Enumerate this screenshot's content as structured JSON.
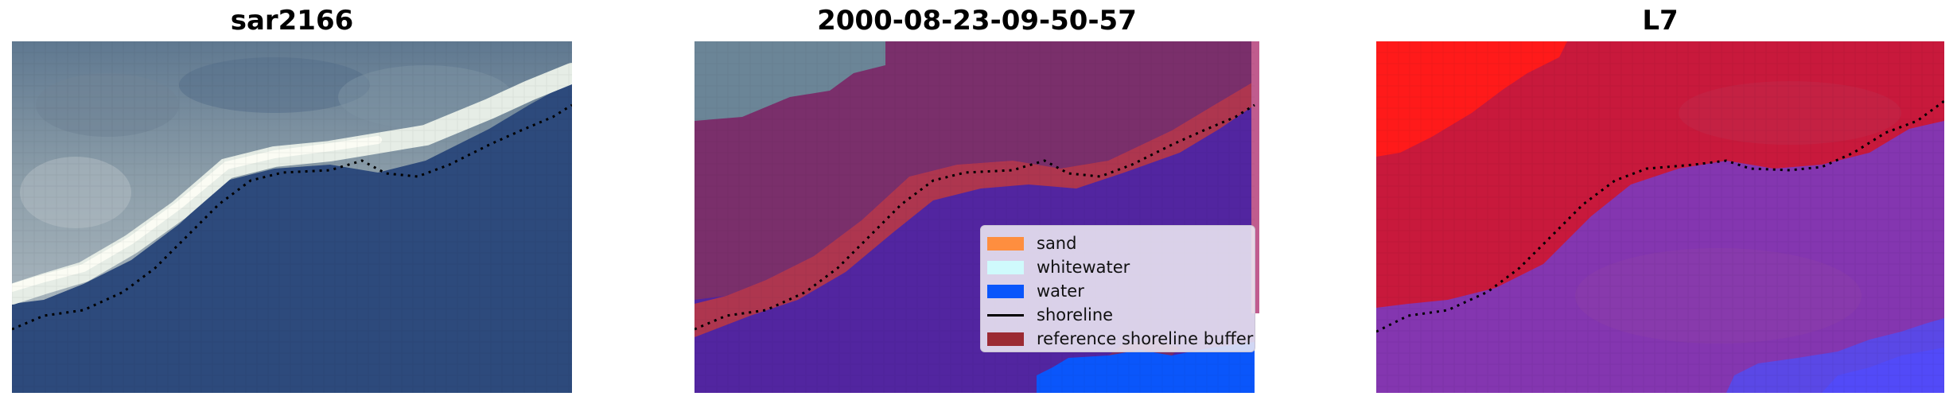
{
  "panels": [
    {
      "title": "sar2166"
    },
    {
      "title": "2000-08-23-09-50-57"
    },
    {
      "title": "L7"
    }
  ],
  "legend": {
    "items": [
      {
        "label": "sand",
        "color": "#fe8e3f",
        "kind": "patch"
      },
      {
        "label": "whitewater",
        "color": "#cffafc",
        "kind": "patch"
      },
      {
        "label": "water",
        "color": "#0a56fb",
        "kind": "patch"
      },
      {
        "label": "shoreline",
        "color": "#000000",
        "kind": "line"
      },
      {
        "label": "reference shoreline buffer",
        "color": "#9b2a33",
        "kind": "patch"
      }
    ]
  },
  "colors": {
    "water_rgb": "#2d4a7c",
    "land_rgb": "#6d8696",
    "class_land": "#7a2f6b",
    "class_buffer": "#b3374b",
    "class_water": "#5225a0",
    "prob_land": "#c8193c",
    "prob_water": "#8436b0",
    "shoreline": "#000000"
  }
}
